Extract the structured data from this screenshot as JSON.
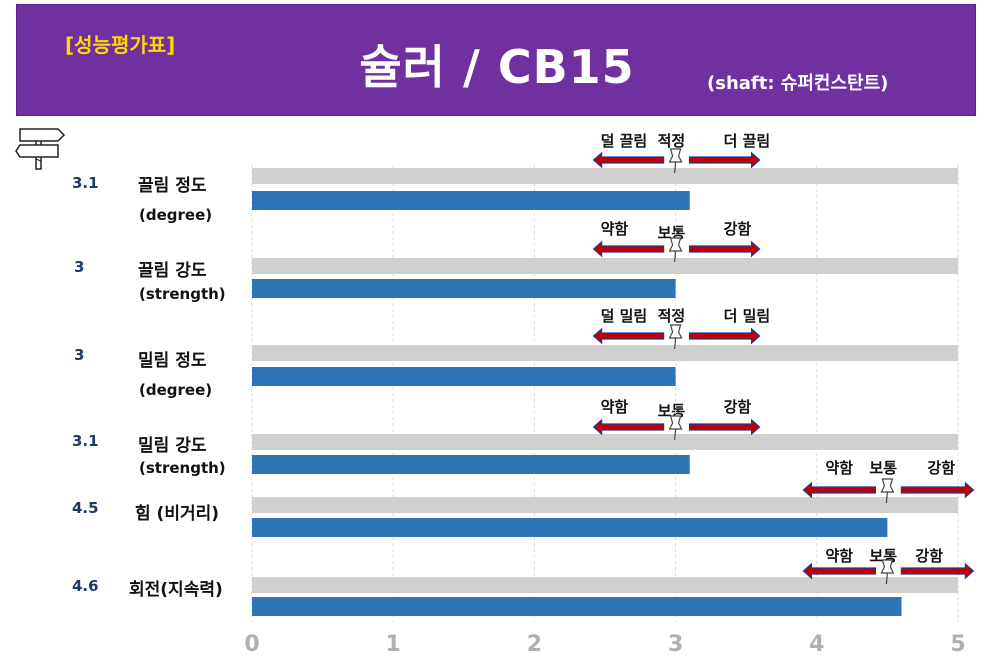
{
  "header": {
    "tag": "[성능평가표]",
    "title": "슐러 / CB15",
    "subtitle": "(shaft: 슈퍼컨스탄트)"
  },
  "chart_data": {
    "type": "bar",
    "xlim": [
      0,
      5
    ],
    "xticks": [
      "0",
      "1",
      "2",
      "3",
      "4",
      "5"
    ],
    "grid": true,
    "rows": [
      {
        "score": "3.1",
        "label": "끌림 정도",
        "sub": "(degree)",
        "value": 3.1,
        "max": 5,
        "marker": 3,
        "left": "덜 끌림",
        "mid": "적정",
        "right": "더 끌림"
      },
      {
        "score": "3",
        "label": "끌림 강도",
        "sub": "(strength)",
        "value": 3.0,
        "max": 5,
        "marker": 3,
        "left": "약함",
        "mid": "보통",
        "right": "강함"
      },
      {
        "score": "3",
        "label": "밀림 정도",
        "sub": "(degree)",
        "value": 3.0,
        "max": 5,
        "marker": 3,
        "left": "덜 밀림",
        "mid": "적정",
        "right": "더 밀림"
      },
      {
        "score": "3.1",
        "label": "밀림 강도",
        "sub": "(strength)",
        "value": 3.1,
        "max": 5,
        "marker": 3,
        "left": "약함",
        "mid": "보통",
        "right": "강함"
      },
      {
        "score": "4.5",
        "label": "힘 (비거리)",
        "sub": "",
        "value": 4.5,
        "max": 5,
        "marker": 4.5,
        "left": "약함",
        "mid": "보통",
        "right": "강함"
      },
      {
        "score": "4.6",
        "label": "회전(지속력)",
        "sub": "",
        "value": 4.6,
        "max": 5,
        "marker": 4.5,
        "left": "약함",
        "mid": "보통",
        "right": "강함"
      }
    ]
  },
  "colors": {
    "banner": "#7030a0",
    "tag": "#ffd800",
    "bar": "#2e75b6",
    "track": "#d0d0d0",
    "arrow_fill": "#c00000",
    "arrow_stroke": "#1f3a93",
    "score": "#1f3864",
    "tick": "#b0b0b0"
  }
}
